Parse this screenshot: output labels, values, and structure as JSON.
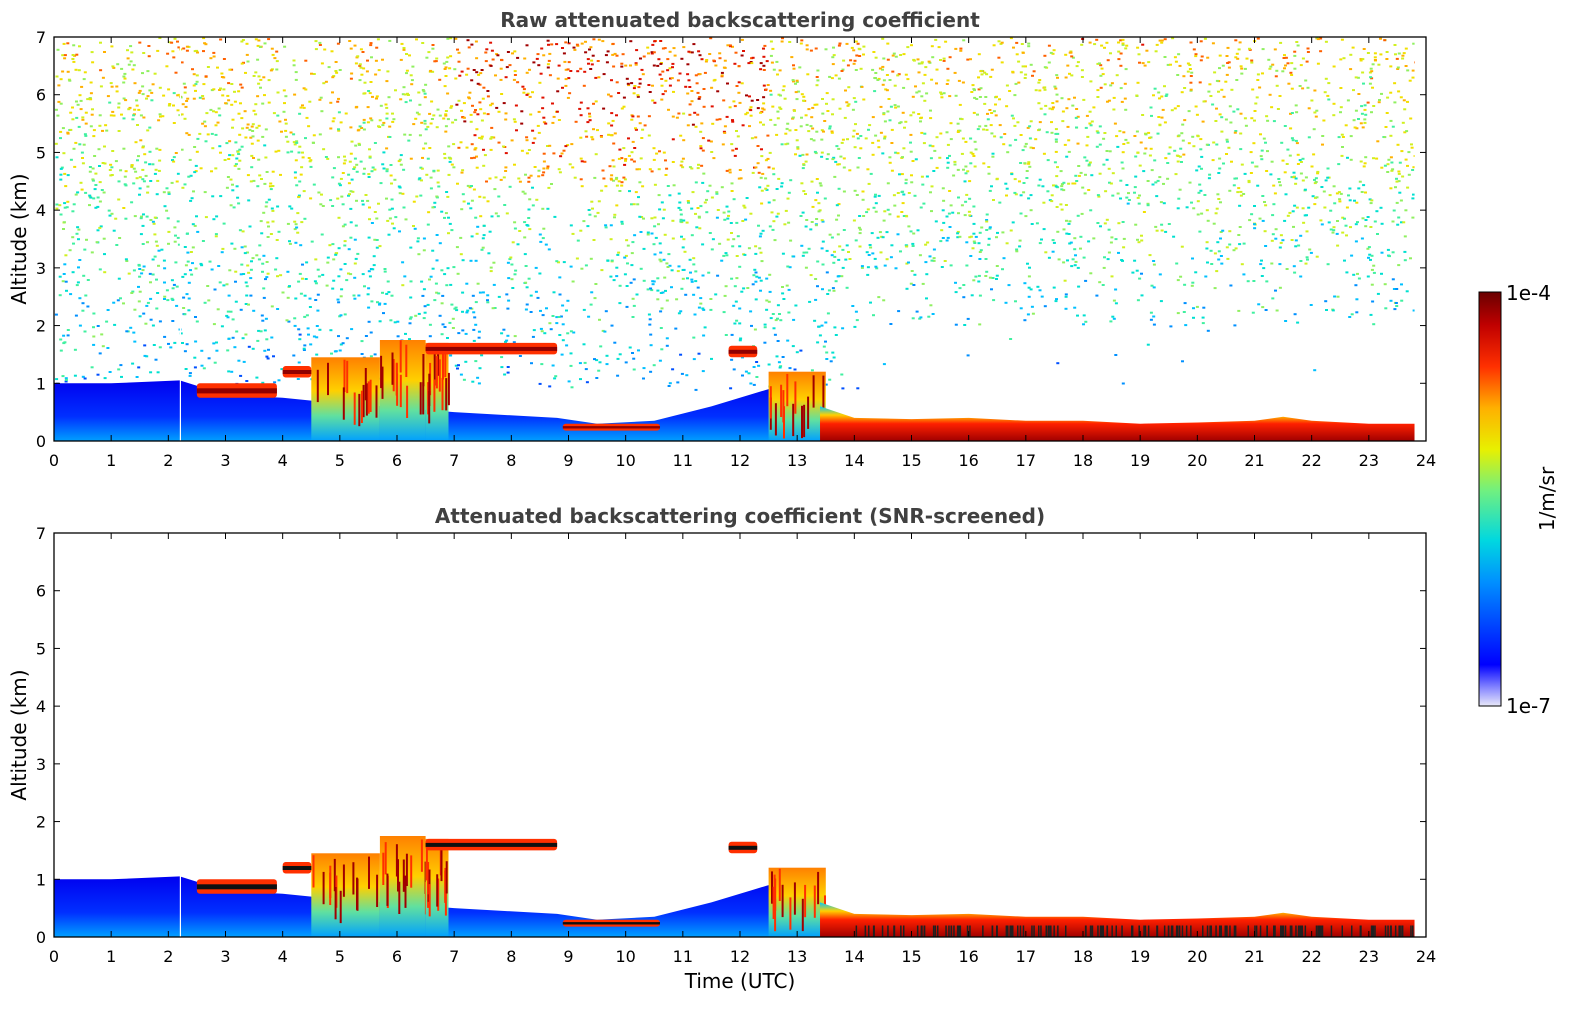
{
  "chart_data": [
    {
      "type": "heatmap",
      "title": "Raw attenuated backscattering coefficient",
      "xlabel": "",
      "ylabel": "Altitude (km)",
      "xlim": [
        0,
        24
      ],
      "ylim": [
        0,
        7
      ],
      "x_ticks": [
        "0",
        "1",
        "2",
        "3",
        "4",
        "5",
        "6",
        "7",
        "8",
        "9",
        "10",
        "11",
        "12",
        "13",
        "14",
        "15",
        "16",
        "17",
        "18",
        "19",
        "20",
        "21",
        "22",
        "23",
        "24"
      ],
      "y_ticks": [
        "0",
        "1",
        "2",
        "3",
        "4",
        "5",
        "6",
        "7"
      ],
      "data_end_hour": 23.8,
      "layers": [
        {
          "feature": "cloud",
          "t_start": 2.5,
          "t_end": 3.9,
          "base_km": 0.75,
          "top_km": 1.0
        },
        {
          "feature": "cloud",
          "t_start": 4.0,
          "t_end": 4.5,
          "base_km": 1.1,
          "top_km": 1.3
        },
        {
          "feature": "cloud",
          "t_start": 6.5,
          "t_end": 8.8,
          "base_km": 1.5,
          "top_km": 1.7
        },
        {
          "feature": "cloud",
          "t_start": 11.8,
          "t_end": 12.3,
          "base_km": 1.45,
          "top_km": 1.65
        },
        {
          "feature": "cloud",
          "t_start": 8.9,
          "t_end": 10.6,
          "base_km": 0.18,
          "top_km": 0.3
        }
      ],
      "boundary_layer_top_km": [
        {
          "t": 14.0,
          "top_km": 0.4
        },
        {
          "t": 17.0,
          "top_km": 0.35
        },
        {
          "t": 21.5,
          "top_km": 0.4
        },
        {
          "t": 23.8,
          "top_km": 0.3
        }
      ]
    },
    {
      "type": "heatmap",
      "title": "Attenuated backscattering coefficient (SNR-screened)",
      "xlabel": "Time (UTC)",
      "ylabel": "Altitude (km)",
      "xlim": [
        0,
        24
      ],
      "ylim": [
        0,
        7
      ],
      "x_ticks": [
        "0",
        "1",
        "2",
        "3",
        "4",
        "5",
        "6",
        "7",
        "8",
        "9",
        "10",
        "11",
        "12",
        "13",
        "14",
        "15",
        "16",
        "17",
        "18",
        "19",
        "20",
        "21",
        "22",
        "23",
        "24"
      ],
      "y_ticks": [
        "0",
        "1",
        "2",
        "3",
        "4",
        "5",
        "6",
        "7"
      ],
      "data_end_hour": 23.8
    }
  ],
  "colorbar": {
    "label": "1/m/sr",
    "max_label": "1e-4",
    "min_label": "1e-7",
    "scale": "log",
    "range": [
      1e-07,
      0.0001
    ],
    "colormap": [
      "#e8e8f8",
      "#0000ff",
      "#00b4ff",
      "#00e0c0",
      "#7cf07c",
      "#f0f000",
      "#ffa000",
      "#ff2000",
      "#a00000",
      "#6a0000"
    ]
  }
}
